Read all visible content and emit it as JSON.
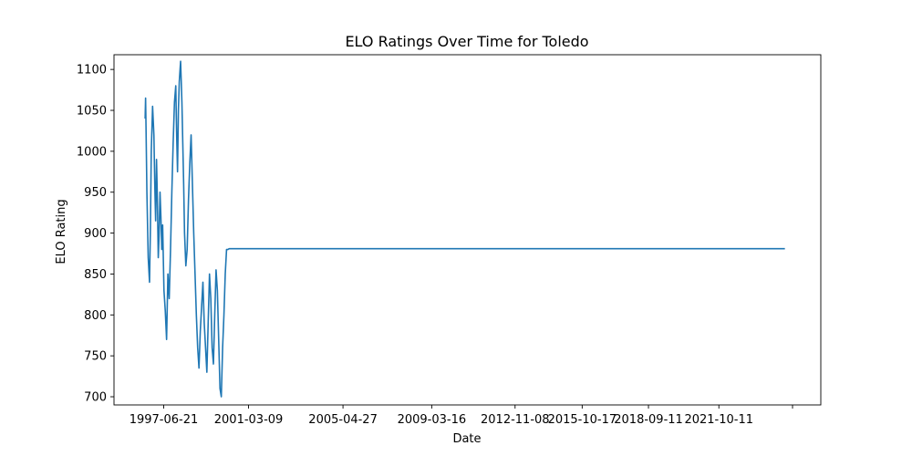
{
  "chart_data": {
    "type": "line",
    "title": "ELO Ratings Over Time for Toledo",
    "xlabel": "Date",
    "ylabel": "ELO Rating",
    "grid": false,
    "legend": "none",
    "xlim": [
      "1995-04-18",
      "2026-03-29"
    ],
    "ylim": [
      690,
      1118
    ],
    "x_ticks": [
      "1997-06-21",
      "2001-03-09",
      "2005-04-27",
      "2009-03-16",
      "2012-11-08",
      "2015-10-17",
      "2018-09-11",
      "2021-10-11",
      "2025-01-01"
    ],
    "x_tick_labels": [
      "1997-06-21",
      "2001-03-09",
      "2005-04-27",
      "2009-03-16",
      "2012-11-08",
      "2015-10-17",
      "2018-09-11",
      "2021-10-11",
      ""
    ],
    "y_ticks": [
      700,
      750,
      800,
      850,
      900,
      950,
      1000,
      1050,
      1100
    ],
    "series": [
      {
        "color": "#1f77b4",
        "x": [
          "1996-08-28",
          "1996-09-04",
          "1996-09-11",
          "1996-09-25",
          "1996-10-16",
          "1996-11-06",
          "1996-11-20",
          "1996-12-04",
          "1996-12-25",
          "1997-01-15",
          "1997-01-29",
          "1997-02-12",
          "1997-02-26",
          "1997-03-12",
          "1997-03-26",
          "1997-04-09",
          "1997-04-23",
          "1997-05-07",
          "1997-05-21",
          "1997-06-04",
          "1997-06-25",
          "1997-07-16",
          "1997-08-06",
          "1997-08-27",
          "1997-09-17",
          "1997-10-08",
          "1997-10-29",
          "1997-11-19",
          "1997-12-10",
          "1997-12-31",
          "1998-01-14",
          "1998-01-28",
          "1998-02-11",
          "1998-02-25",
          "1998-03-18",
          "1998-04-08",
          "1998-04-22",
          "1998-05-06",
          "1998-05-20",
          "1998-06-10",
          "1998-07-01",
          "1998-07-22",
          "1998-08-12",
          "1998-09-02",
          "1998-09-23",
          "1998-10-14",
          "1998-11-04",
          "1998-11-25",
          "1998-12-16",
          "1999-01-06",
          "1999-01-27",
          "1999-02-17",
          "1999-03-10",
          "1999-03-31",
          "1999-04-21",
          "1999-05-12",
          "1999-06-02",
          "1999-06-23",
          "1999-07-14",
          "1999-08-04",
          "1999-08-25",
          "1999-09-15",
          "1999-10-06",
          "1999-10-27",
          "1999-11-17",
          "1999-12-08",
          "1999-12-29",
          "2000-01-19",
          "2000-02-09",
          "2000-03-01",
          "2000-03-22",
          "2000-04-12",
          "2000-05-03",
          "2000-05-24",
          "2000-06-14",
          "2000-07-05",
          "2000-07-26",
          "2000-08-16",
          "2000-09-06",
          "2000-09-27",
          "2000-10-18",
          "2000-11-08",
          "2000-11-29",
          "2000-12-13",
          "2024-09-01"
        ],
        "y": [
          1040,
          1065,
          1030,
          950,
          870,
          840,
          905,
          1000,
          1055,
          1020,
          960,
          915,
          990,
          940,
          870,
          900,
          950,
          920,
          880,
          910,
          830,
          805,
          770,
          850,
          820,
          880,
          950,
          1010,
          1060,
          1080,
          1020,
          975,
          1050,
          1085,
          1110,
          1060,
          1010,
          960,
          900,
          860,
          880,
          940,
          985,
          1020,
          960,
          900,
          850,
          800,
          760,
          735,
          780,
          810,
          840,
          790,
          760,
          730,
          790,
          850,
          820,
          760,
          740,
          800,
          855,
          830,
          770,
          710,
          700,
          760,
          800,
          850,
          880,
          880,
          881,
          881,
          881,
          881,
          881,
          881,
          881,
          881,
          881,
          881,
          881,
          881,
          881
        ]
      }
    ]
  }
}
